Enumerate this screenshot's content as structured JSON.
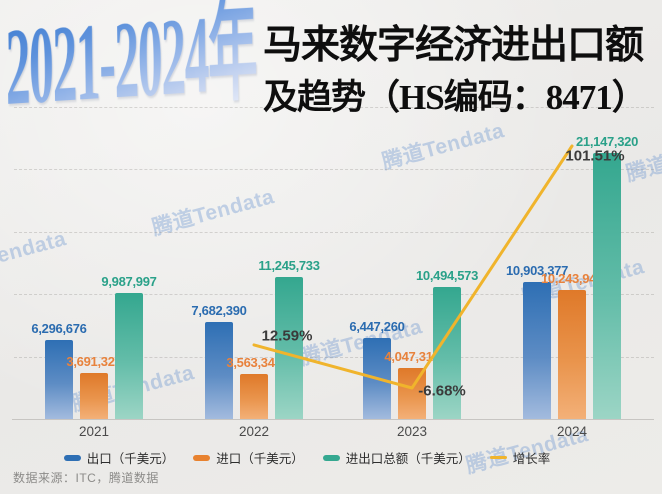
{
  "header": {
    "years_title": "2021-2024年",
    "title_line1": "马来数字经济进出口额",
    "title_line2": "及趋势（HS编码：8471）"
  },
  "watermark_text": "腾道Tendata",
  "chart_data": {
    "type": "bar",
    "title": "2021-2024年马来数字经济进出口额及趋势（HS编码：8471）",
    "categories": [
      "2021",
      "2022",
      "2023",
      "2024"
    ],
    "value_unit": "千美元",
    "grid": "horizontal-dashed",
    "legend_position": "bottom",
    "series": [
      {
        "name": "出口（千美元）",
        "color": "#2e6fb4",
        "values": [
          6296676,
          7682390,
          6447260,
          10903377
        ],
        "labels": [
          "6,296,676",
          "7,682,390",
          "6,447,260",
          "10,903,377"
        ]
      },
      {
        "name": "进口（千美元）",
        "color": "#e8822f",
        "values": [
          3691321,
          3563343,
          4047313,
          10243943
        ],
        "labels": [
          "3,691,321",
          "3,563,343",
          "4,047,313",
          "10,243,943"
        ]
      },
      {
        "name": "进出口总额（千美元）",
        "color": "#35a890",
        "values": [
          9987997,
          11245733,
          10494573,
          21147320
        ],
        "labels": [
          "9,987,997",
          "11,245,733",
          "10,494,573",
          "21,147,320"
        ]
      }
    ],
    "line_series": {
      "name": "增长率",
      "color": "#f0b42c",
      "values": [
        null,
        12.59,
        -6.68,
        101.51
      ],
      "labels": [
        null,
        "12.59%",
        "-6.68%",
        "101.51%"
      ]
    }
  },
  "legend": [
    {
      "label": "出口（千美元）",
      "color": "#2e6fb4",
      "type": "bar"
    },
    {
      "label": "进口（千美元）",
      "color": "#e8822f",
      "type": "bar"
    },
    {
      "label": "进出口总额（千美元）",
      "color": "#35a890",
      "type": "bar"
    },
    {
      "label": "增长率",
      "color": "#f0b42c",
      "type": "line"
    }
  ],
  "source": "数据来源：ITC，腾道数据"
}
